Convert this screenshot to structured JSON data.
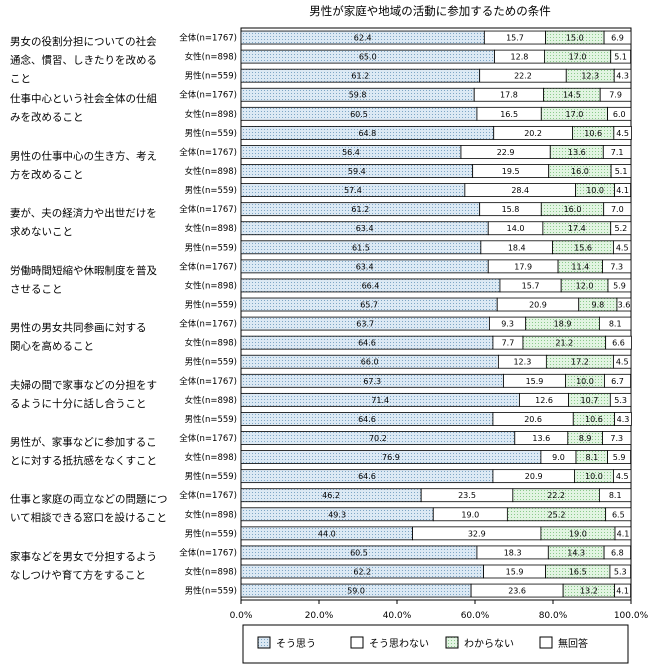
{
  "chart_data": {
    "type": "bar",
    "stacked": true,
    "orientation": "horizontal",
    "title": "男性が家庭や地域の活動に参加するための条件",
    "xlim": [
      0,
      100
    ],
    "x_ticks": [
      "0.0%",
      "20.0%",
      "40.0%",
      "60.0%",
      "80.0%",
      "100.0%"
    ],
    "grid": false,
    "legend_position": "bottom",
    "series": [
      {
        "name": "そう思う",
        "color": "#d7e6f2"
      },
      {
        "name": "そう思わない",
        "color": "#ffffff"
      },
      {
        "name": "わからない",
        "color": "#dff3df"
      },
      {
        "name": "無回答",
        "color": "#ffffff"
      }
    ],
    "groups": [
      {
        "label_lines": [
          "男女の役割分担についての社会",
          "通念、慣習、しきたりを改める",
          "こと"
        ],
        "rows": [
          {
            "label": "全体(n=1767)",
            "values": [
              62.4,
              15.7,
              15.0,
              6.9
            ]
          },
          {
            "label": "女性(n=898)",
            "values": [
              65.0,
              12.8,
              17.0,
              5.1
            ]
          },
          {
            "label": "男性(n=559)",
            "values": [
              61.2,
              22.2,
              12.3,
              4.3
            ]
          }
        ]
      },
      {
        "label_lines": [
          "仕事中心という社会全体の仕組",
          "みを改めること"
        ],
        "rows": [
          {
            "label": "全体(n=1767)",
            "values": [
              59.8,
              17.8,
              14.5,
              7.9
            ]
          },
          {
            "label": "女性(n=898)",
            "values": [
              60.5,
              16.5,
              17.0,
              6.0
            ]
          },
          {
            "label": "男性(n=559)",
            "values": [
              64.8,
              20.2,
              10.6,
              4.5
            ]
          }
        ]
      },
      {
        "label_lines": [
          "男性の仕事中心の生き方、考え",
          "方を改めること"
        ],
        "rows": [
          {
            "label": "全体(n=1767)",
            "values": [
              56.4,
              22.9,
              13.6,
              7.1
            ]
          },
          {
            "label": "女性(n=898)",
            "values": [
              59.4,
              19.5,
              16.0,
              5.1
            ]
          },
          {
            "label": "男性(n=559)",
            "values": [
              57.4,
              28.4,
              10.0,
              4.1
            ]
          }
        ]
      },
      {
        "label_lines": [
          "妻が、夫の経済力や出世だけを",
          "求めないこと"
        ],
        "rows": [
          {
            "label": "全体(n=1767)",
            "values": [
              61.2,
              15.8,
              16.0,
              7.0
            ]
          },
          {
            "label": "女性(n=898)",
            "values": [
              63.4,
              14.0,
              17.4,
              5.2
            ]
          },
          {
            "label": "男性(n=559)",
            "values": [
              61.5,
              18.4,
              15.6,
              4.5
            ]
          }
        ]
      },
      {
        "label_lines": [
          "労働時間短縮や休暇制度を普及",
          "させること"
        ],
        "rows": [
          {
            "label": "全体(n=1767)",
            "values": [
              63.4,
              17.9,
              11.4,
              7.3
            ]
          },
          {
            "label": "女性(n=898)",
            "values": [
              66.4,
              15.7,
              12.0,
              5.9
            ]
          },
          {
            "label": "男性(n=559)",
            "values": [
              65.7,
              20.9,
              9.8,
              3.6
            ]
          }
        ]
      },
      {
        "label_lines": [
          "男性の男女共同参画に対する",
          "関心を高めること"
        ],
        "rows": [
          {
            "label": "全体(n=1767)",
            "values": [
              63.7,
              9.3,
              18.9,
              8.1
            ]
          },
          {
            "label": "女性(n=898)",
            "values": [
              64.6,
              7.7,
              21.2,
              6.6
            ]
          },
          {
            "label": "男性(n=559)",
            "values": [
              66.0,
              12.3,
              17.2,
              4.5
            ]
          }
        ]
      },
      {
        "label_lines": [
          "夫婦の間で家事などの分担をす",
          "るように十分に話し合うこと"
        ],
        "rows": [
          {
            "label": "全体(n=1767)",
            "values": [
              67.3,
              15.9,
              10.0,
              6.7
            ]
          },
          {
            "label": "女性(n=898)",
            "values": [
              71.4,
              12.6,
              10.7,
              5.3
            ]
          },
          {
            "label": "男性(n=559)",
            "values": [
              64.6,
              20.6,
              10.6,
              4.3
            ]
          }
        ]
      },
      {
        "label_lines": [
          "男性が、家事などに参加するこ",
          "とに対する抵抗感をなくすこと"
        ],
        "rows": [
          {
            "label": "全体(n=1767)",
            "values": [
              70.2,
              13.6,
              8.9,
              7.3
            ]
          },
          {
            "label": "女性(n=898)",
            "values": [
              76.9,
              9.0,
              8.1,
              5.9
            ]
          },
          {
            "label": "男性(n=559)",
            "values": [
              64.6,
              20.9,
              10.0,
              4.5
            ]
          }
        ]
      },
      {
        "label_lines": [
          "仕事と家庭の両立などの問題につ",
          "いて相談できる窓口を設けること"
        ],
        "rows": [
          {
            "label": "全体(n=1767)",
            "values": [
              46.2,
              23.5,
              22.2,
              8.1
            ]
          },
          {
            "label": "女性(n=898)",
            "values": [
              49.3,
              19.0,
              25.2,
              6.5
            ]
          },
          {
            "label": "男性(n=559)",
            "values": [
              44.0,
              32.9,
              19.0,
              4.1
            ]
          }
        ]
      },
      {
        "label_lines": [
          "家事などを男女で分担するよう",
          "なしつけや育て方をすること"
        ],
        "rows": [
          {
            "label": "全体(n=1767)",
            "values": [
              60.5,
              18.3,
              14.3,
              6.8
            ]
          },
          {
            "label": "女性(n=898)",
            "values": [
              62.2,
              15.9,
              16.5,
              5.3
            ]
          },
          {
            "label": "男性(n=559)",
            "values": [
              59.0,
              23.6,
              13.2,
              4.1
            ]
          }
        ]
      }
    ]
  }
}
